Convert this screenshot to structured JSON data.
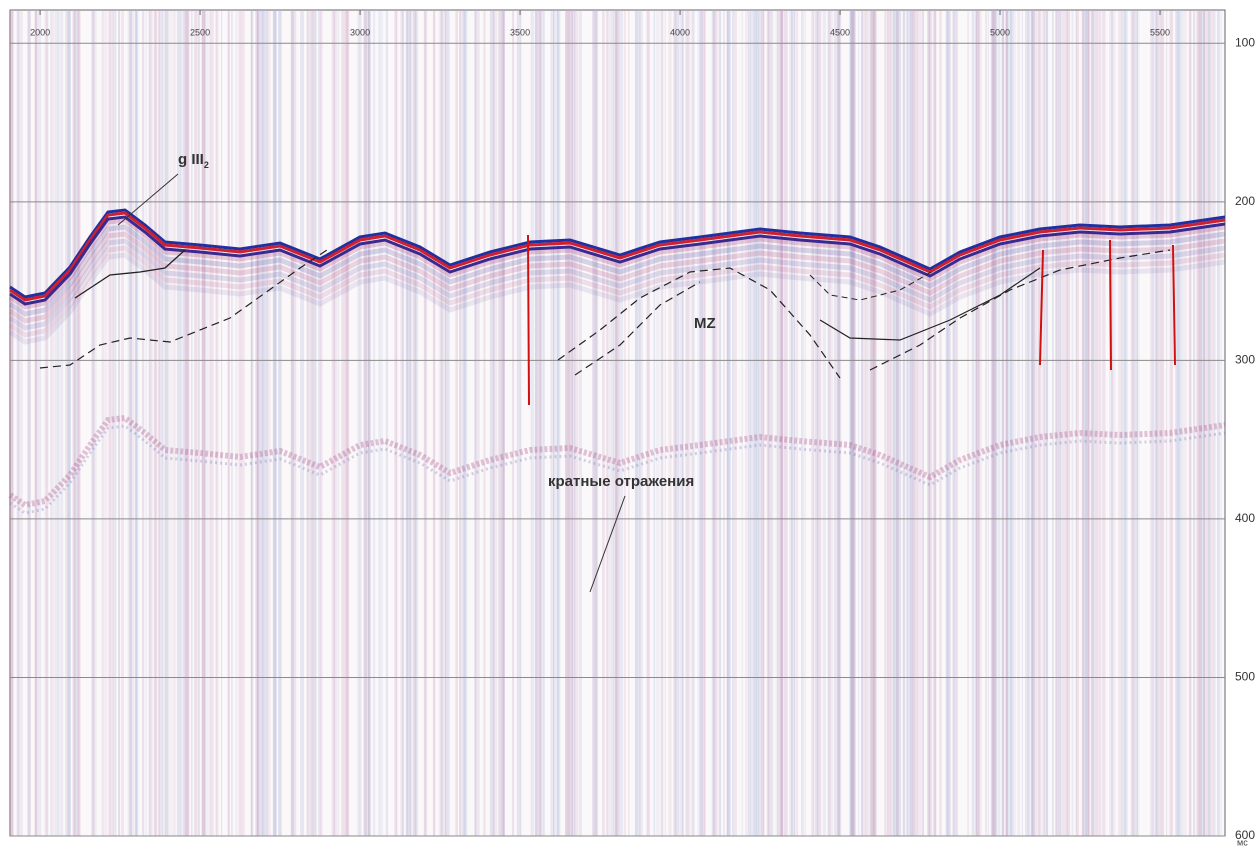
{
  "chart_data": {
    "type": "seismic",
    "xlim": [
      1906,
      5703
    ],
    "xticks": [
      2000,
      2500,
      3000,
      3500,
      4000,
      4500,
      5000,
      5500
    ],
    "ylim": [
      79,
      600
    ],
    "yticks": [
      100,
      200,
      300,
      400,
      500,
      600
    ],
    "y_inverted": true,
    "y_unit": "мс",
    "grid": true,
    "annotations": [
      {
        "text": "g III",
        "sub": "2"
      },
      {
        "text": "MZ"
      },
      {
        "text": "кратные отражения"
      }
    ]
  }
}
